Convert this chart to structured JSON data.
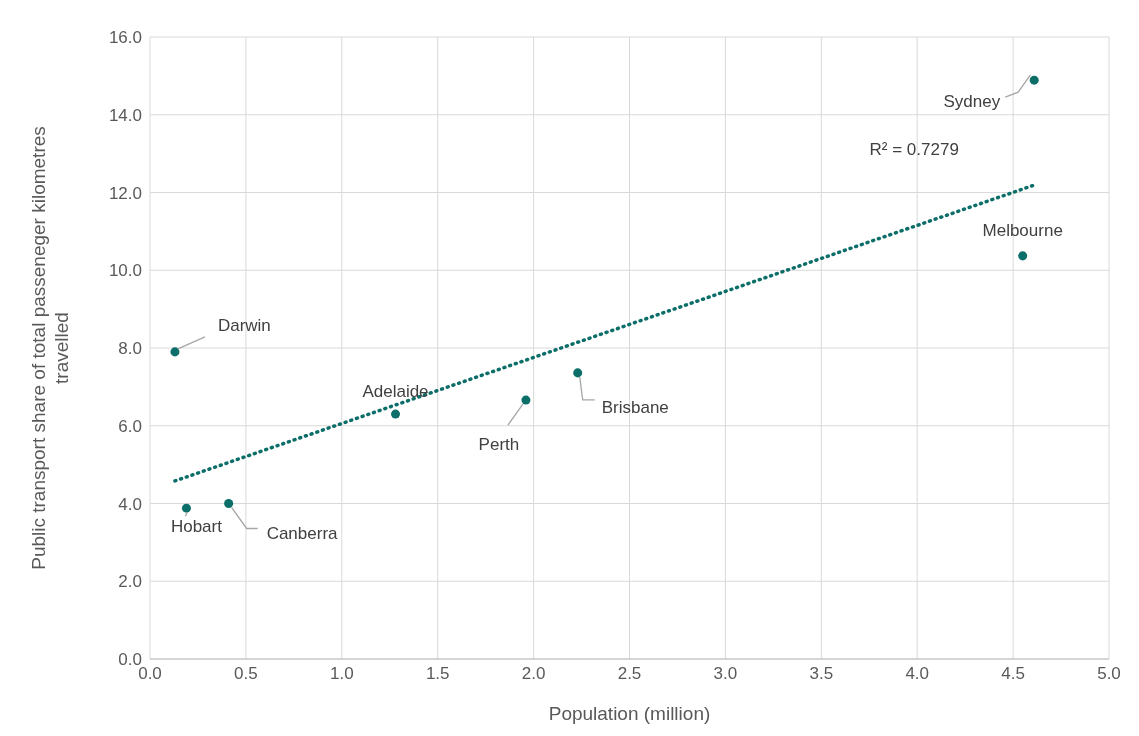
{
  "chart_data": {
    "type": "scatter",
    "xlabel": "Population (million)",
    "ylabel": "Public transport share of total passeneger kilometres travelled",
    "x": [
      0.13,
      0.19,
      0.41,
      1.28,
      1.96,
      2.23,
      4.55,
      4.61
    ],
    "series": [
      {
        "color": "#0b6e69",
        "marker": "circle",
        "values": [
          7.9,
          3.88,
          4.0,
          6.3,
          6.66,
          7.36,
          10.37,
          14.89
        ]
      },
      {
        "type": "line",
        "color": "#0b6e69",
        "marker": "none",
        "line_style": "dotted",
        "x": [
          0.13,
          4.61
        ],
        "values": [
          4.58,
          12.19
        ]
      }
    ],
    "annotations": [
      {
        "text": "Darwin",
        "x": 0.13,
        "y": 7.9
      },
      {
        "text": "Hobart",
        "x": 0.19,
        "y": 3.88
      },
      {
        "text": "Canberra",
        "x": 0.41,
        "y": 4.0
      },
      {
        "text": "Adelaide",
        "x": 1.28,
        "y": 6.3
      },
      {
        "text": "Perth",
        "x": 1.96,
        "y": 6.66
      },
      {
        "text": "Brisbane",
        "x": 2.23,
        "y": 7.36
      },
      {
        "text": "Melbourne",
        "x": 4.55,
        "y": 10.37
      },
      {
        "text": "Sydney",
        "x": 4.61,
        "y": 14.89
      },
      "R² = 0.7279"
    ],
    "xlim": [
      0,
      5
    ],
    "xticks": [
      {
        "value": 0,
        "label": "0.0"
      },
      {
        "value": 0.5,
        "label": "0.5"
      },
      {
        "value": 1,
        "label": "1.0"
      },
      {
        "value": 1.5,
        "label": "1.5"
      },
      {
        "value": 2,
        "label": "2.0"
      },
      {
        "value": 2.5,
        "label": "2.5"
      },
      {
        "value": 3,
        "label": "3.0"
      },
      {
        "value": 3.5,
        "label": "3.5"
      },
      {
        "value": 4,
        "label": "4.0"
      },
      {
        "value": 4.5,
        "label": "4.5"
      },
      {
        "value": 5,
        "label": "5.0"
      }
    ],
    "ylim": [
      0,
      16
    ],
    "yticks": [
      {
        "value": 0,
        "label": "0.0"
      },
      {
        "value": 2,
        "label": "2.0"
      },
      {
        "value": 4,
        "label": "4.0"
      },
      {
        "value": 6,
        "label": "6.0"
      },
      {
        "value": 8,
        "label": "8.0"
      },
      {
        "value": 10,
        "label": "10.0"
      },
      {
        "value": 12,
        "label": "12.0"
      },
      {
        "value": 14,
        "label": "14.0"
      },
      {
        "value": 16,
        "label": "16.0"
      }
    ],
    "grid": true,
    "legend": false
  }
}
